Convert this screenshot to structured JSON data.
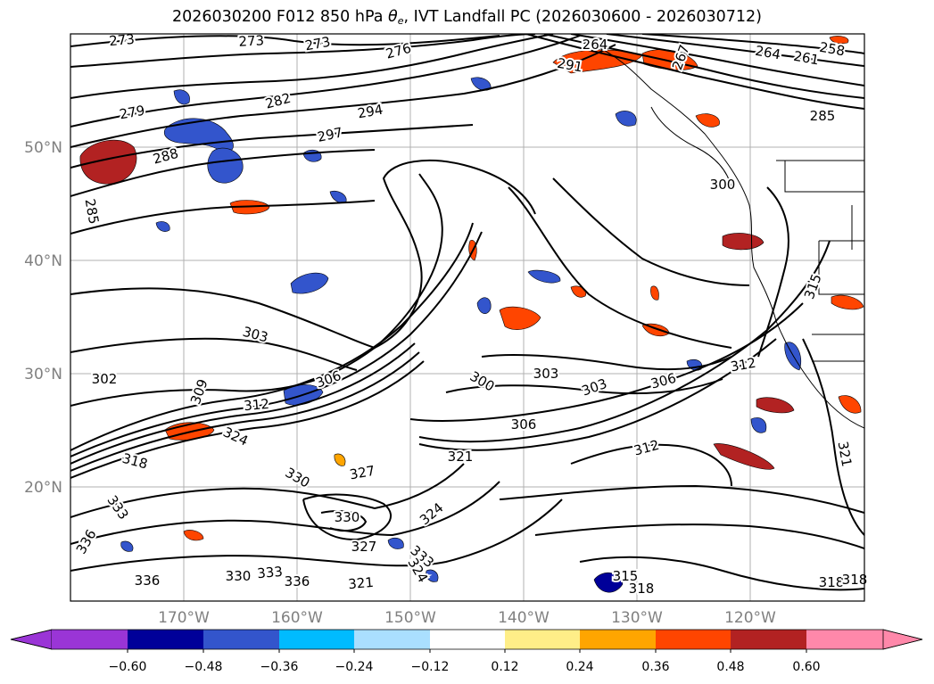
{
  "title": {
    "prefix": "2026030200 F012 850 hPa ",
    "theta": "θ",
    "sub": "e",
    "suffix": ", IVT Landfall PC (2026030600 - 2026030712)"
  },
  "map": {
    "lat_ticks": [
      "50°N",
      "40°N",
      "30°N",
      "20°N"
    ],
    "lon_ticks": [
      "170°W",
      "160°W",
      "150°W",
      "140°W",
      "130°W",
      "120°W"
    ],
    "grid": true,
    "coastline_color": "#000000"
  },
  "contour_labels": [
    "273",
    "273",
    "273",
    "276",
    "264",
    "267",
    "264",
    "261",
    "258",
    "279",
    "282",
    "294",
    "291",
    "297",
    "288",
    "285",
    "285",
    "300",
    "303",
    "306",
    "309",
    "302",
    "300",
    "303",
    "303",
    "306",
    "306",
    "312",
    "312",
    "318",
    "324",
    "321",
    "327",
    "330",
    "333",
    "336",
    "330",
    "336",
    "327",
    "333",
    "330",
    "333",
    "336",
    "324",
    "324",
    "321",
    "315",
    "318",
    "321",
    "318",
    "318",
    "315",
    "312"
  ],
  "colorbar": {
    "ticks": [
      "−0.60",
      "−0.48",
      "−0.36",
      "−0.24",
      "−0.12",
      "0.12",
      "0.24",
      "0.36",
      "0.48",
      "0.60"
    ],
    "colors": [
      "#9a35d6",
      "#000099",
      "#3355cc",
      "#00bbff",
      "#aadfff",
      "#ffffff",
      "#ffee88",
      "#ffa500",
      "#ff4500",
      "#b22222",
      "#ff88aa"
    ],
    "under_color": "#9a35d6",
    "over_color": "#ff88aa"
  }
}
